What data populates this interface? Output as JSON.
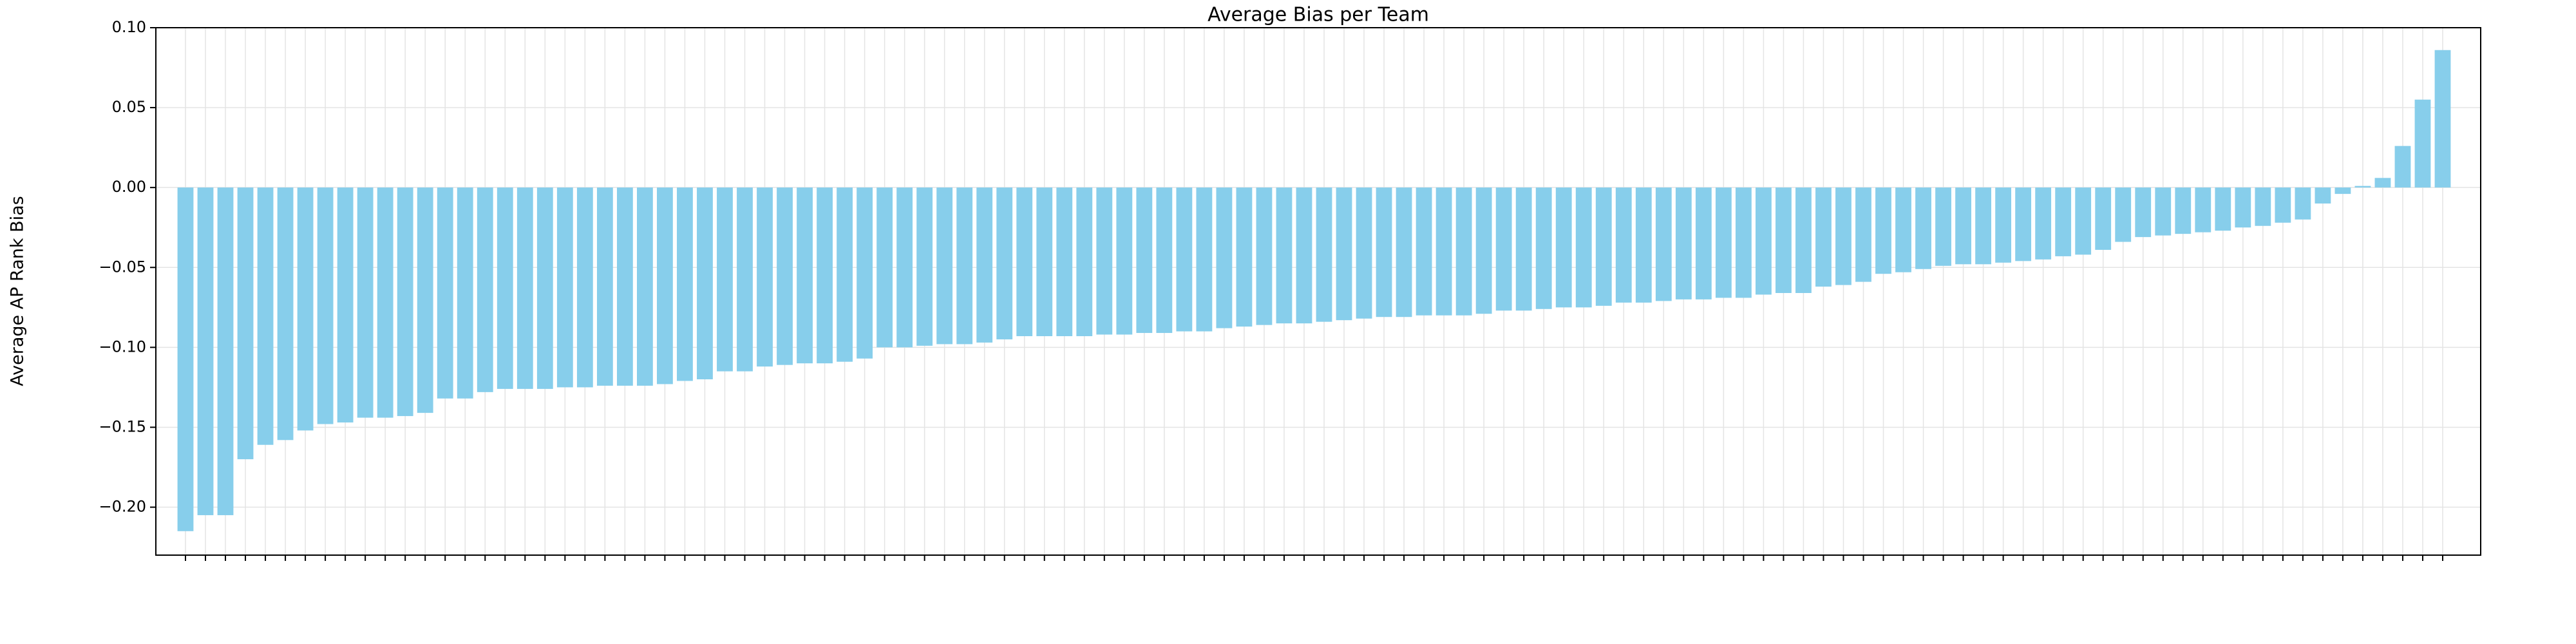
{
  "chart_data": {
    "type": "bar",
    "title": "Average Bias per Team",
    "ylabel": "Average AP Rank Bias",
    "categories": [
      null,
      null,
      null,
      null,
      null,
      null,
      null,
      null,
      null,
      null,
      null,
      null,
      null,
      null,
      null,
      null,
      null,
      null,
      null,
      null,
      null,
      null,
      null,
      null,
      null,
      null,
      null,
      null,
      null,
      null,
      null,
      null,
      null,
      null,
      null,
      null,
      null,
      null,
      null,
      null,
      null,
      null,
      null,
      null,
      null,
      null,
      null,
      null,
      null,
      null,
      null,
      null,
      null,
      null,
      null,
      null,
      null,
      null,
      null,
      null,
      null,
      null,
      null,
      null,
      null,
      null,
      null,
      null,
      null,
      null,
      null,
      null,
      null,
      null,
      null,
      null,
      null,
      null,
      null,
      null,
      null,
      null,
      null,
      null,
      null,
      null,
      null,
      null,
      null,
      null,
      null,
      null,
      null,
      null,
      null,
      null,
      null,
      null,
      null,
      null,
      null,
      null,
      null,
      null,
      null,
      null,
      null,
      null,
      null,
      null,
      null,
      null,
      null,
      null
    ],
    "values": [
      -0.215,
      -0.205,
      -0.205,
      -0.17,
      -0.161,
      -0.158,
      -0.152,
      -0.148,
      -0.147,
      -0.144,
      -0.144,
      -0.143,
      -0.141,
      -0.132,
      -0.132,
      -0.128,
      -0.126,
      -0.126,
      -0.126,
      -0.125,
      -0.125,
      -0.124,
      -0.124,
      -0.124,
      -0.123,
      -0.121,
      -0.12,
      -0.115,
      -0.115,
      -0.112,
      -0.111,
      -0.11,
      -0.11,
      -0.109,
      -0.107,
      -0.1,
      -0.1,
      -0.099,
      -0.098,
      -0.098,
      -0.097,
      -0.095,
      -0.093,
      -0.093,
      -0.093,
      -0.093,
      -0.092,
      -0.092,
      -0.091,
      -0.091,
      -0.09,
      -0.09,
      -0.088,
      -0.087,
      -0.086,
      -0.085,
      -0.085,
      -0.084,
      -0.083,
      -0.082,
      -0.081,
      -0.081,
      -0.08,
      -0.08,
      -0.08,
      -0.079,
      -0.077,
      -0.077,
      -0.076,
      -0.075,
      -0.075,
      -0.074,
      -0.072,
      -0.072,
      -0.071,
      -0.07,
      -0.07,
      -0.069,
      -0.069,
      -0.067,
      -0.066,
      -0.066,
      -0.062,
      -0.061,
      -0.059,
      -0.054,
      -0.053,
      -0.051,
      -0.049,
      -0.048,
      -0.048,
      -0.047,
      -0.046,
      -0.045,
      -0.043,
      -0.042,
      -0.039,
      -0.034,
      -0.031,
      -0.03,
      -0.029,
      -0.028,
      -0.027,
      -0.025,
      -0.024,
      -0.022,
      -0.02,
      -0.01,
      -0.004,
      0.001,
      0.006,
      0.026,
      0.055,
      0.086
    ],
    "color": "#87ceeb",
    "ylim": [
      -0.23,
      0.1
    ],
    "yticks": [
      {
        "value": -0.2,
        "label": "−0.20"
      },
      {
        "value": -0.15,
        "label": "−0.15"
      },
      {
        "value": -0.1,
        "label": "−0.10"
      },
      {
        "value": -0.05,
        "label": "−0.05"
      },
      {
        "value": 0,
        "label": "0.00"
      },
      {
        "value": 0.05,
        "label": "0.05"
      },
      {
        "value": 0.1,
        "label": "0.10"
      }
    ],
    "grid": true
  }
}
